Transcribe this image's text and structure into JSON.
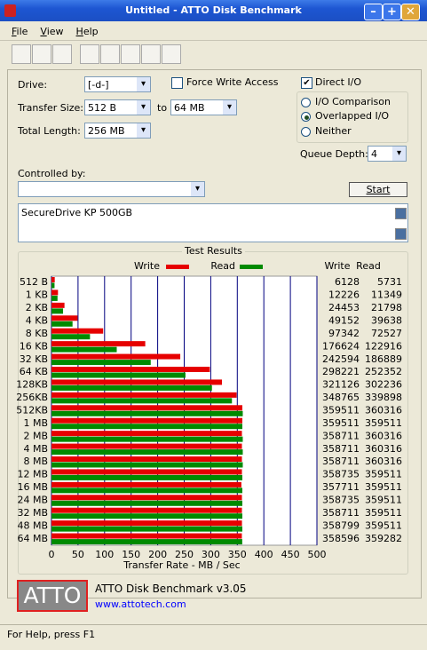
{
  "window": {
    "title": "Untitled - ATTO Disk Benchmark"
  },
  "menu": [
    "File",
    "View",
    "Help"
  ],
  "form": {
    "drive_label": "Drive:",
    "drive": "[-d-]",
    "force_write": "Force Write Access",
    "direct_io": "Direct I/O",
    "transfer_size_label": "Transfer Size:",
    "transfer_from": "512 B",
    "to": "to",
    "transfer_to": "64 MB",
    "total_length_label": "Total Length:",
    "total_length": "256 MB",
    "io_comparison": "I/O Comparison",
    "overlapped_io": "Overlapped I/O",
    "neither": "Neither",
    "queue_depth_label": "Queue Depth:",
    "queue_depth": "4",
    "controlled_by_label": "Controlled by:",
    "start": "Start",
    "description": "SecureDrive KP 500GB"
  },
  "test_results": {
    "type": "bar",
    "title": "Test Results",
    "categories": [
      "512 B",
      "1 KB",
      "2 KB",
      "4 KB",
      "8 KB",
      "16 KB",
      "32 KB",
      "64 KB",
      "128KB",
      "256KB",
      "512KB",
      "1 MB",
      "2 MB",
      "4 MB",
      "8 MB",
      "12 MB",
      "16 MB",
      "24 MB",
      "32 MB",
      "48 MB",
      "64 MB"
    ],
    "series": [
      {
        "name": "Write",
        "color": "#e60000",
        "values": [
          6128,
          12226,
          24453,
          49152,
          97342,
          176624,
          242594,
          298221,
          321126,
          348765,
          359511,
          359511,
          358711,
          358711,
          358711,
          358735,
          357711,
          358735,
          358711,
          358799,
          358596
        ]
      },
      {
        "name": "Read",
        "color": "#008a00",
        "values": [
          5731,
          11349,
          21798,
          39638,
          72527,
          122916,
          186889,
          252352,
          302236,
          339898,
          360316,
          359511,
          360316,
          360316,
          360316,
          359511,
          359511,
          359511,
          359511,
          359511,
          359282
        ]
      }
    ],
    "x_label": "Transfer Rate - MB / Sec",
    "xlim": [
      0,
      500000
    ],
    "xticks": [
      0,
      {
        "value": 50000,
        "label": "50"
      },
      {
        "value": 100000,
        "label": "100"
      },
      {
        "value": 150000,
        "label": "150"
      },
      {
        "value": 200000,
        "label": "200"
      },
      {
        "value": 250000,
        "label": "250"
      },
      {
        "value": 300000,
        "label": "300"
      },
      {
        "value": 350000,
        "label": "350"
      },
      {
        "value": 400000,
        "label": "400"
      },
      {
        "value": 450000,
        "label": "450"
      },
      {
        "value": 500000,
        "label": "500"
      }
    ],
    "grid": true
  },
  "footer": {
    "logo": "ATTO",
    "product": "ATTO Disk Benchmark v3.05",
    "url": "www.attotech.com"
  },
  "status": "For Help, press F1"
}
